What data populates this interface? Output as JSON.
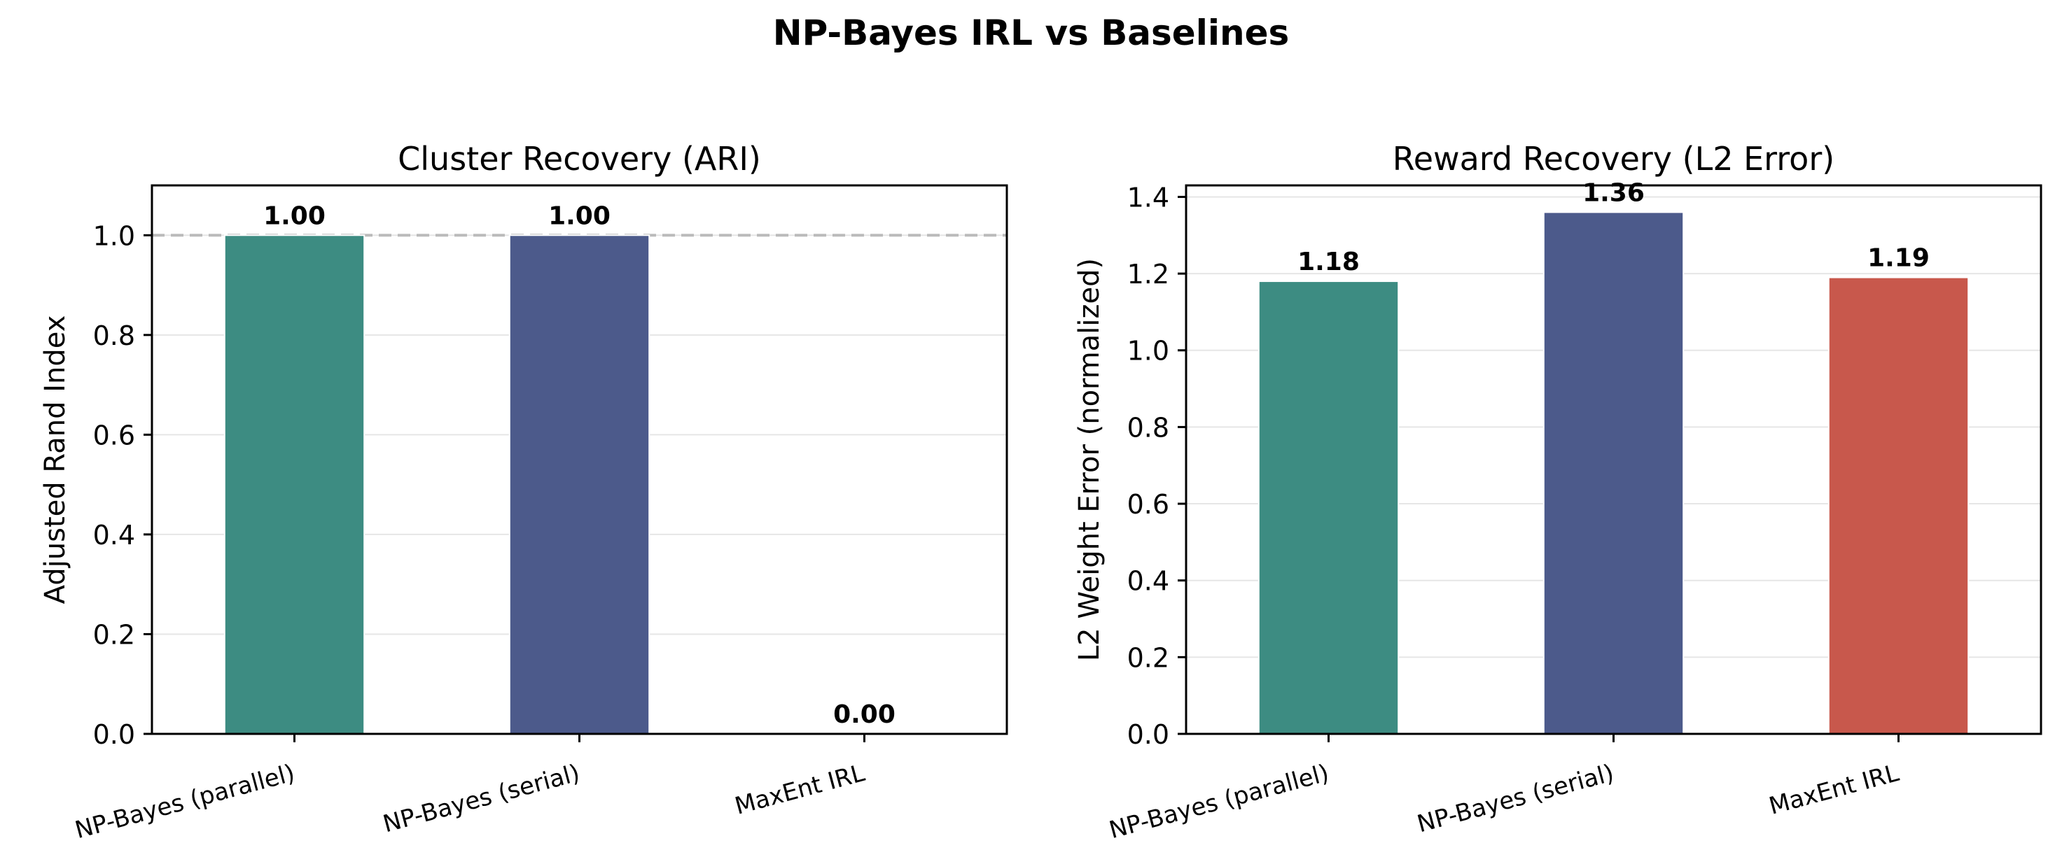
{
  "suptitle": "NP-Bayes IRL vs Baselines",
  "colors": {
    "parallel": "#3d8c82",
    "serial": "#4c5a8b",
    "maxent": "#c8584c",
    "reference_line": "#bbbbbb",
    "grid": "#e6e6e6"
  },
  "chart_data": [
    {
      "type": "bar",
      "title": "Cluster Recovery (ARI)",
      "xlabel": "",
      "ylabel": "Adjusted Rand Index",
      "categories": [
        "NP-Bayes (parallel)",
        "NP-Bayes (serial)",
        "MaxEnt IRL"
      ],
      "values": [
        1.0,
        1.0,
        0.0
      ],
      "value_labels": [
        "1.00",
        "1.00",
        "0.00"
      ],
      "ylim": [
        0,
        1.1
      ],
      "yticks": [
        0.0,
        0.2,
        0.4,
        0.6,
        0.8,
        1.0
      ],
      "ytick_labels": [
        "0.0",
        "0.2",
        "0.4",
        "0.6",
        "0.8",
        "1.0"
      ],
      "reference_line": 1.0,
      "grid": "y",
      "bar_colors": [
        "parallel",
        "serial",
        "maxent"
      ]
    },
    {
      "type": "bar",
      "title": "Reward Recovery (L2 Error)",
      "xlabel": "",
      "ylabel": "L2 Weight Error (normalized)",
      "categories": [
        "NP-Bayes (parallel)",
        "NP-Bayes (serial)",
        "MaxEnt IRL"
      ],
      "values": [
        1.18,
        1.36,
        1.19
      ],
      "value_labels": [
        "1.18",
        "1.36",
        "1.19"
      ],
      "ylim": [
        0,
        1.43
      ],
      "yticks": [
        0.0,
        0.2,
        0.4,
        0.6,
        0.8,
        1.0,
        1.2,
        1.4
      ],
      "ytick_labels": [
        "0.0",
        "0.2",
        "0.4",
        "0.6",
        "0.8",
        "1.0",
        "1.2",
        "1.4"
      ],
      "grid": "y",
      "bar_colors": [
        "parallel",
        "serial",
        "maxent"
      ]
    }
  ]
}
